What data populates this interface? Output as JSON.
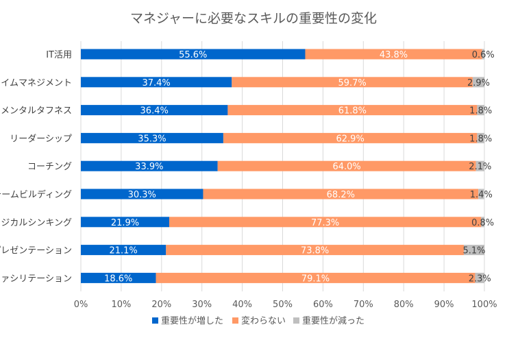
{
  "chart_data": {
    "type": "bar",
    "orientation": "horizontal",
    "stacked": "percent",
    "title": "マネジャーに必要なスキルの重要性の変化",
    "categories": [
      "IT活用",
      "タイムマネジメント",
      "メンタルタフネス",
      "リーダーシップ",
      "コーチング",
      "チームビルディング",
      "ロジカルシンキング",
      "プレゼンテーション",
      "ファシリテーション"
    ],
    "series": [
      {
        "name": "重要性が増した",
        "color": "#0066cc",
        "values": [
          55.6,
          37.4,
          36.4,
          35.3,
          33.9,
          30.3,
          21.9,
          21.1,
          18.6
        ],
        "labels": [
          "55.6%",
          "37.4%",
          "36.4%",
          "35.3%",
          "33.9%",
          "30.3%",
          "21.9%",
          "21.1%",
          "18.6%"
        ]
      },
      {
        "name": "変わらない",
        "color": "#ff9966",
        "values": [
          43.8,
          59.7,
          61.8,
          62.9,
          64.0,
          68.2,
          77.3,
          73.8,
          79.1
        ],
        "labels": [
          "43.8%",
          "59.7%",
          "61.8%",
          "62.9%",
          "64.0%",
          "68.2%",
          "77.3%",
          "73.8%",
          "79.1%"
        ]
      },
      {
        "name": "重要性が減った",
        "color": "#bfbfbf",
        "values": [
          0.6,
          2.9,
          1.8,
          1.8,
          2.1,
          1.4,
          0.8,
          5.1,
          2.3
        ],
        "labels": [
          "0.6%",
          "2.9%",
          "1.8%",
          "1.8%",
          "2.1%",
          "1.4%",
          "0.8%",
          "5.1%",
          "2.3%"
        ]
      }
    ],
    "xlim": [
      0,
      100
    ],
    "x_ticks": [
      "0%",
      "10%",
      "20%",
      "30%",
      "40%",
      "50%",
      "60%",
      "70%",
      "80%",
      "90%",
      "100%"
    ],
    "grid": true,
    "legend_position": "bottom"
  }
}
